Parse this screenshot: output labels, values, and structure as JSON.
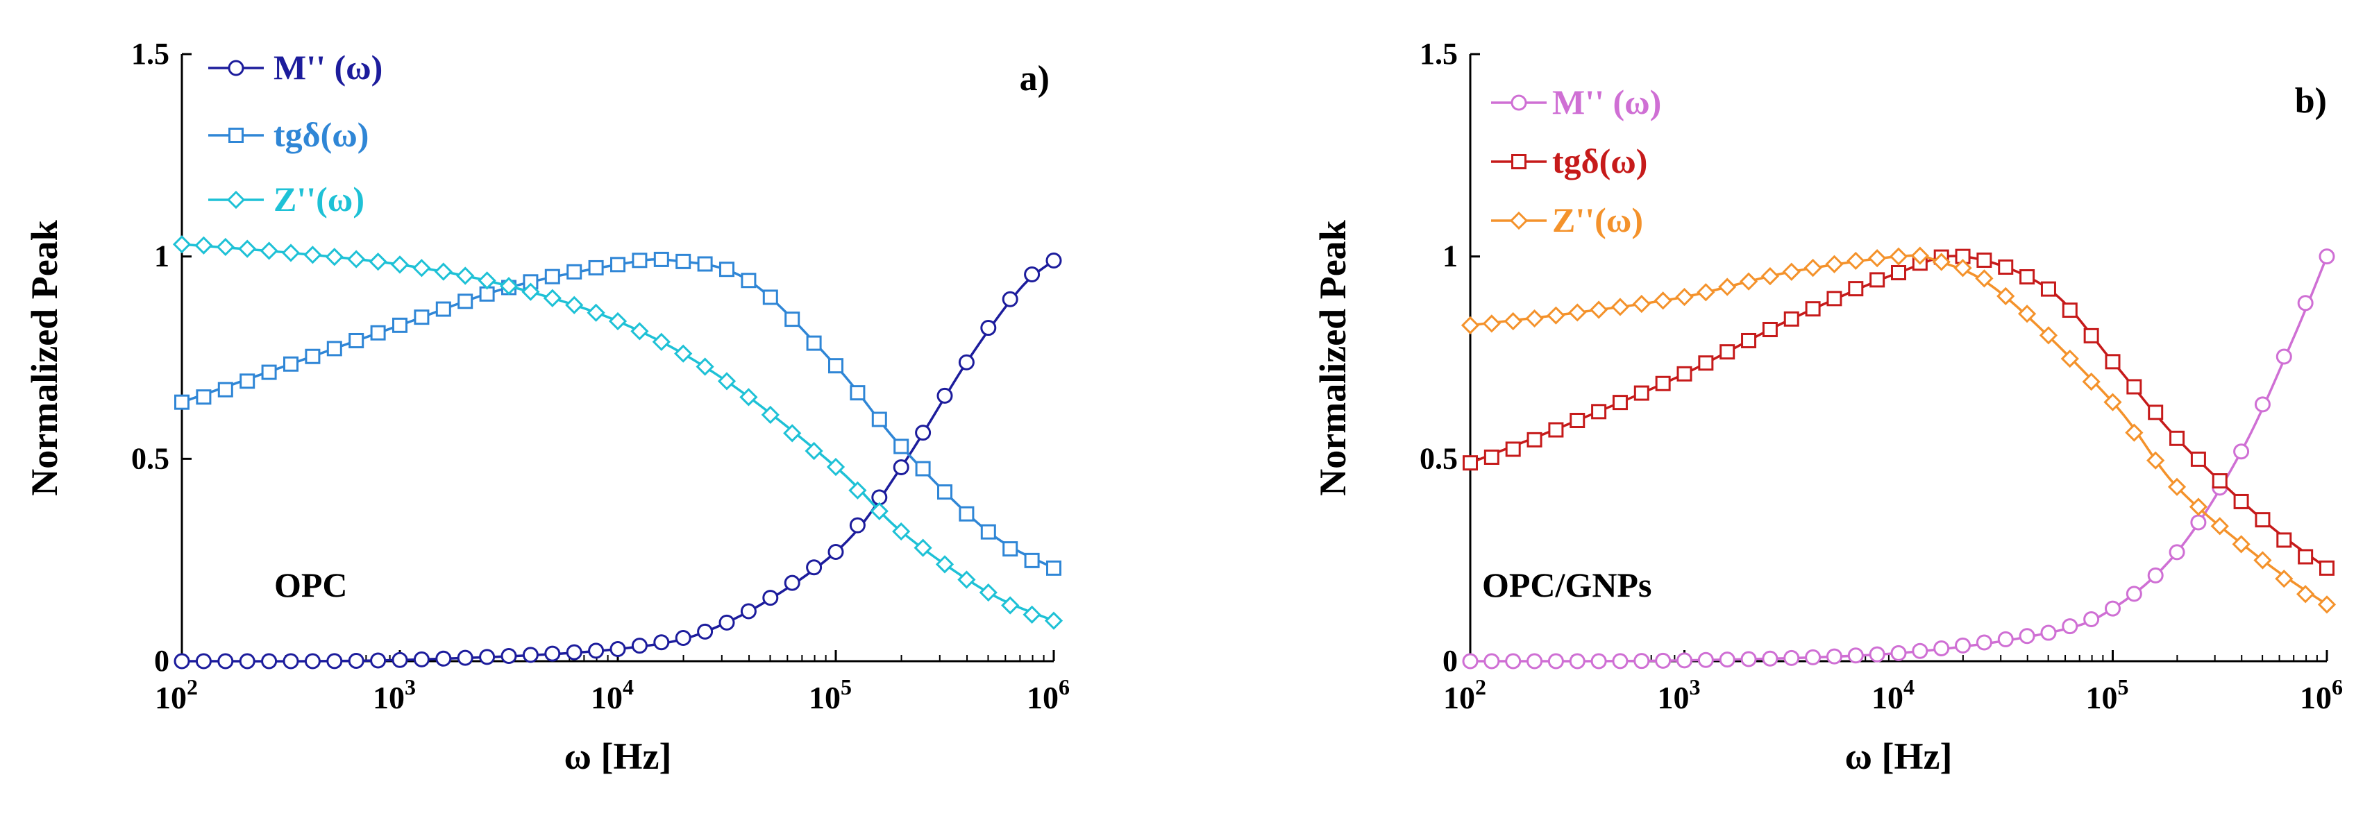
{
  "chart_data": [
    {
      "type": "line",
      "panel_label": "a)",
      "sample_label": "OPC",
      "xscale": "log",
      "xlabel": "ω [Hz]",
      "ylabel": "Normalized Peak",
      "xlim": [
        100,
        1000000
      ],
      "ylim": [
        0,
        1.5
      ],
      "xtick_exponents": [
        "2",
        "3",
        "4",
        "5",
        "6"
      ],
      "ytick_labels": [
        "0",
        "0.5",
        "1",
        "1.5"
      ],
      "yticks": [
        0,
        0.5,
        1,
        1.5
      ],
      "legend_position": "top-left",
      "series": [
        {
          "name": "M'' (ω)",
          "marker": "circle",
          "color": "#1c1c9c",
          "x": [
            100,
            1000,
            10000,
            30000,
            100000,
            200000,
            400000,
            700000,
            1000000
          ],
          "y": [
            0.0,
            0.003,
            0.03,
            0.09,
            0.27,
            0.48,
            0.74,
            0.92,
            0.99
          ]
        },
        {
          "name": "tgδ(ω)",
          "marker": "square",
          "color": "#2f86d6",
          "x": [
            100,
            300,
            1000,
            3000,
            10000,
            18000,
            40000,
            100000,
            200000,
            500000,
            1000000
          ],
          "y": [
            0.64,
            0.73,
            0.83,
            0.92,
            0.98,
            0.99,
            0.94,
            0.73,
            0.53,
            0.32,
            0.23
          ]
        },
        {
          "name": "Z''(ω)",
          "marker": "diamond",
          "color": "#1ec1d6",
          "x": [
            100,
            300,
            1000,
            3000,
            10000,
            30000,
            100000,
            200000,
            500000,
            1000000
          ],
          "y": [
            1.03,
            1.01,
            0.98,
            0.93,
            0.84,
            0.7,
            0.48,
            0.32,
            0.17,
            0.1
          ]
        }
      ]
    },
    {
      "type": "line",
      "panel_label": "b)",
      "sample_label": "OPC/GNPs",
      "xscale": "log",
      "xlabel": "ω [Hz]",
      "ylabel": "Normalized Peak",
      "xlim": [
        100,
        1000000
      ],
      "ylim": [
        0,
        1.5
      ],
      "xtick_exponents": [
        "2",
        "3",
        "4",
        "5",
        "6"
      ],
      "ytick_labels": [
        "0",
        "0.5",
        "1",
        "1.5"
      ],
      "yticks": [
        0,
        0.5,
        1,
        1.5
      ],
      "legend_position": "top-left",
      "series": [
        {
          "name": "M'' (ω)",
          "marker": "circle",
          "color": "#cf6fd4",
          "x": [
            100,
            1000,
            10000,
            50000,
            100000,
            200000,
            400000,
            700000,
            1000000
          ],
          "y": [
            0.0,
            0.002,
            0.02,
            0.07,
            0.13,
            0.27,
            0.52,
            0.8,
            1.0
          ]
        },
        {
          "name": "tgδ(ω)",
          "marker": "square",
          "color": "#c61a1a",
          "x": [
            100,
            300,
            1000,
            3000,
            10000,
            20000,
            50000,
            100000,
            200000,
            500000,
            1000000
          ],
          "y": [
            0.49,
            0.59,
            0.71,
            0.84,
            0.96,
            1.0,
            0.92,
            0.74,
            0.55,
            0.35,
            0.23
          ]
        },
        {
          "name": "Z''(ω)",
          "marker": "diamond",
          "color": "#f4922b",
          "x": [
            100,
            300,
            1000,
            3000,
            10000,
            15000,
            30000,
            100000,
            200000,
            500000,
            1000000
          ],
          "y": [
            0.83,
            0.86,
            0.9,
            0.96,
            1.0,
            0.99,
            0.91,
            0.64,
            0.43,
            0.25,
            0.14
          ]
        }
      ]
    }
  ]
}
